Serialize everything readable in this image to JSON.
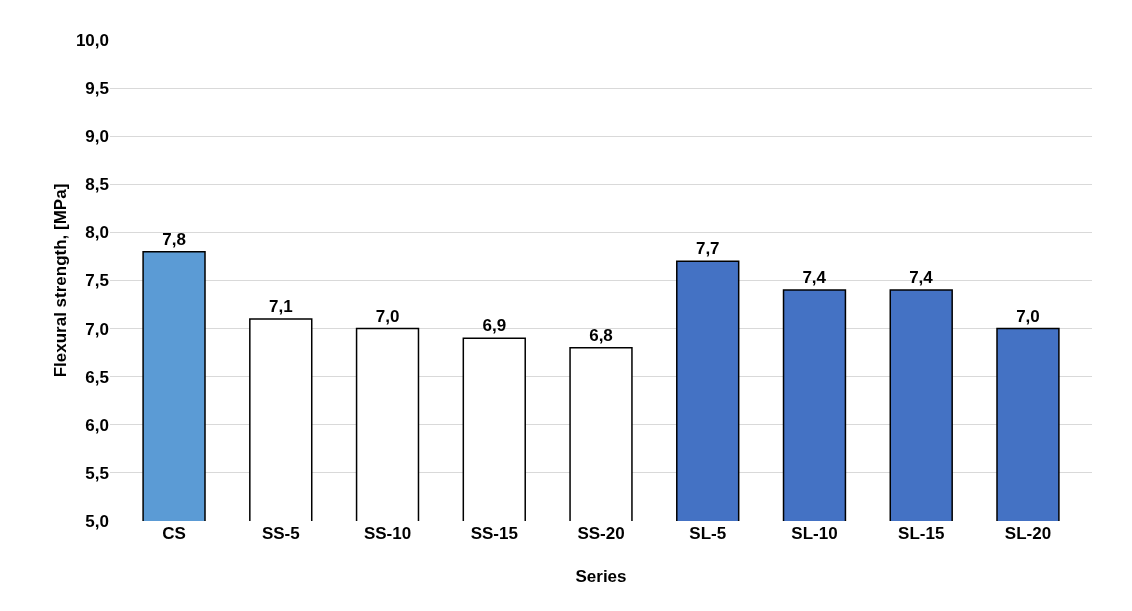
{
  "chart_data": {
    "type": "bar",
    "xlabel": "Series",
    "ylabel": "Flexural strength, [MPa]",
    "categories": [
      "CS",
      "SS-5",
      "SS-10",
      "SS-15",
      "SS-20",
      "SL-5",
      "SL-10",
      "SL-15",
      "SL-20"
    ],
    "values": [
      7.8,
      7.1,
      7.0,
      6.9,
      6.8,
      7.7,
      7.4,
      7.4,
      7.0
    ],
    "value_labels": [
      "7,8",
      "7,1",
      "7,0",
      "6,9",
      "6,8",
      "7,7",
      "7,4",
      "7,4",
      "7,0"
    ],
    "colors": [
      "#5b9bd5",
      "#ffffff",
      "#ffffff",
      "#ffffff",
      "#ffffff",
      "#4472c4",
      "#4472c4",
      "#4472c4",
      "#4472c4"
    ],
    "ylim": [
      5,
      10
    ],
    "yticks": [
      {
        "value": 5,
        "label": "5,0"
      },
      {
        "value": 5.5,
        "label": "5,5"
      },
      {
        "value": 6,
        "label": "6,0"
      },
      {
        "value": 6.5,
        "label": "6,5"
      },
      {
        "value": 7,
        "label": "7,0"
      },
      {
        "value": 7.5,
        "label": "7,5"
      },
      {
        "value": 8,
        "label": "8,0"
      },
      {
        "value": 8.5,
        "label": "8,5"
      },
      {
        "value": 9,
        "label": "9,0"
      },
      {
        "value": 9.5,
        "label": "9,5"
      },
      {
        "value": 10,
        "label": "10,0"
      }
    ],
    "grid": "y",
    "legend": false
  }
}
